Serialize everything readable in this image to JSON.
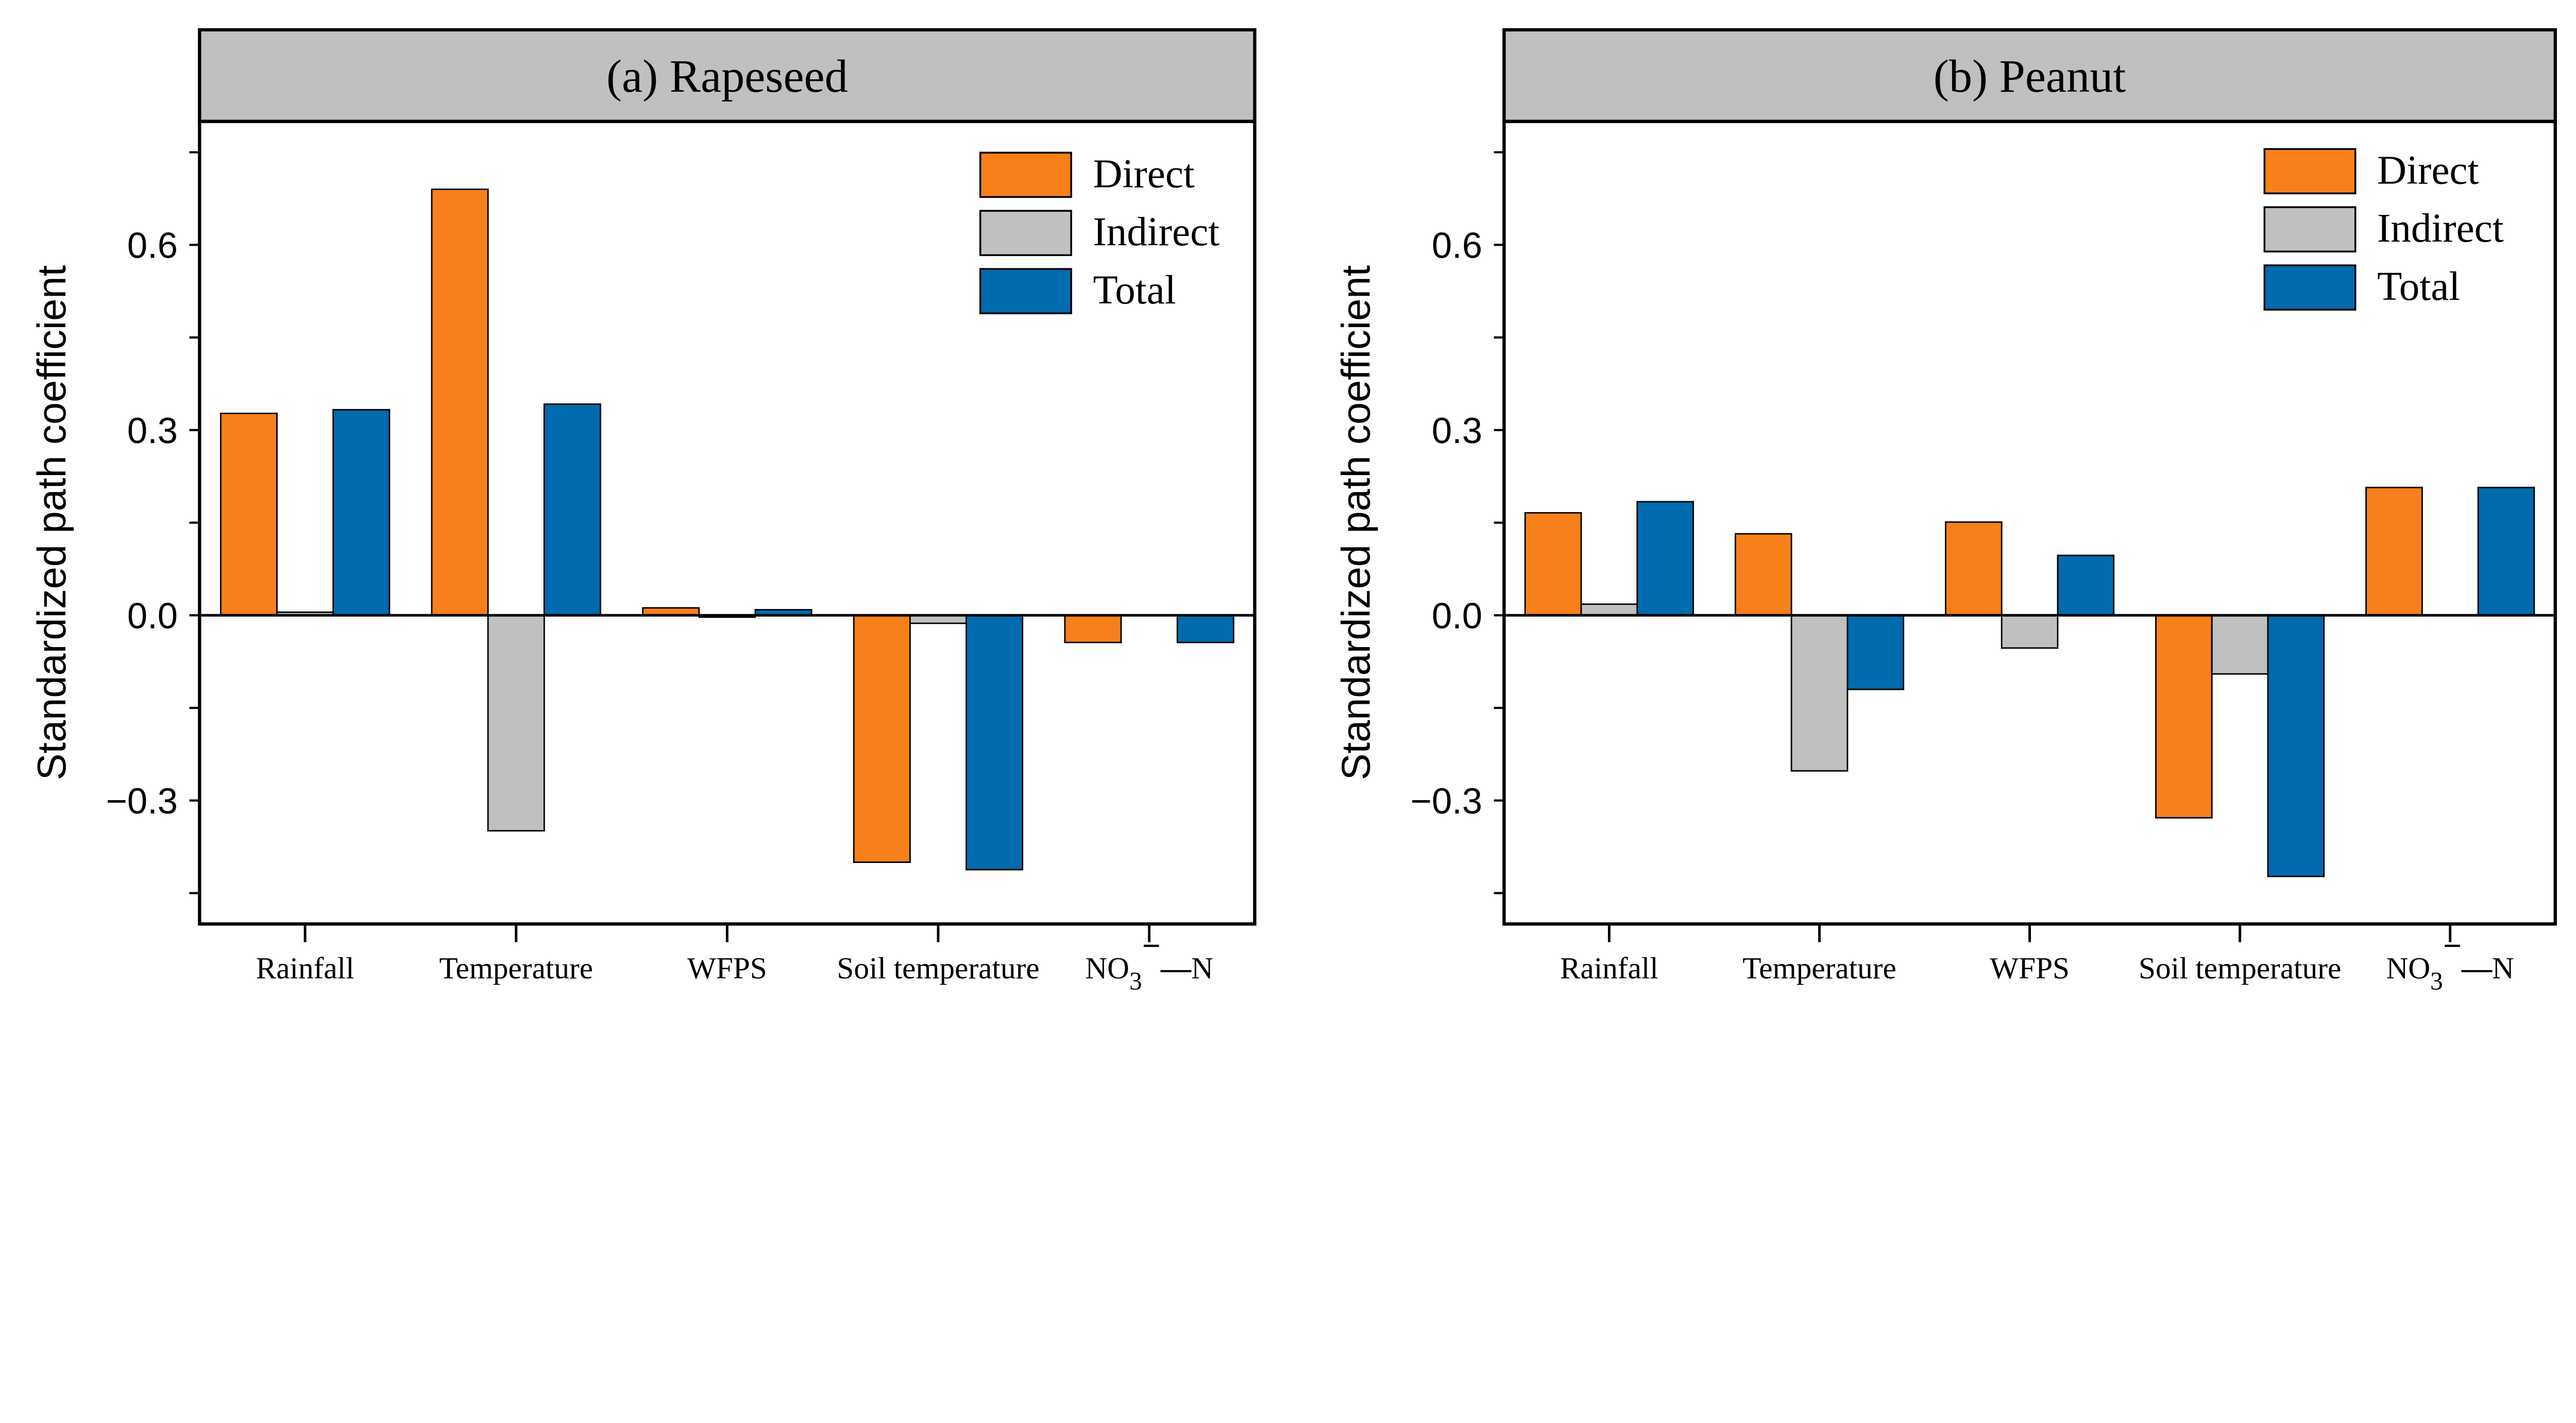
{
  "colors": {
    "Direct": "#F7801A",
    "Indirect": "#C0C0C0",
    "Total": "#006BAE",
    "header": "#C0C0C0"
  },
  "chart_data": [
    {
      "type": "bar",
      "title": "(a) Rapeseed",
      "xlabel": "",
      "ylabel": "Standardized path coefficient",
      "ylim": [
        -0.5,
        0.8
      ],
      "yticks": [
        -0.3,
        0.0,
        0.3,
        0.6
      ],
      "ytick_labels": [
        "−0.3",
        "0.0",
        "0.3",
        "0.6"
      ],
      "categories": [
        "Rainfall",
        "Temperature",
        "WFPS",
        "Soil temperature",
        "NO3−N"
      ],
      "legend_position": "top-right",
      "grid": false,
      "series": [
        {
          "name": "Direct",
          "values": [
            0.327,
            0.69,
            0.012,
            -0.4,
            -0.044
          ]
        },
        {
          "name": "Indirect",
          "values": [
            0.005,
            -0.349,
            -0.003,
            -0.013,
            0.0
          ]
        },
        {
          "name": "Total",
          "values": [
            0.333,
            0.342,
            0.009,
            -0.412,
            -0.044
          ]
        }
      ]
    },
    {
      "type": "bar",
      "title": "(b) Peanut",
      "xlabel": "",
      "ylabel": "Standardized path coefficient",
      "ylim": [
        -0.5,
        0.8
      ],
      "yticks": [
        -0.3,
        0.0,
        0.3,
        0.6
      ],
      "ytick_labels": [
        "−0.3",
        "0.0",
        "0.3",
        "0.6"
      ],
      "categories": [
        "Rainfall",
        "Temperature",
        "WFPS",
        "Soil temperature",
        "NO3−N"
      ],
      "legend_position": "top-right",
      "grid": false,
      "series": [
        {
          "name": "Direct",
          "values": [
            0.166,
            0.132,
            0.151,
            -0.328,
            0.207
          ]
        },
        {
          "name": "Indirect",
          "values": [
            0.018,
            -0.252,
            -0.053,
            -0.095,
            0.0
          ]
        },
        {
          "name": "Total",
          "values": [
            0.184,
            -0.12,
            0.097,
            -0.423,
            0.207
          ]
        }
      ]
    }
  ]
}
